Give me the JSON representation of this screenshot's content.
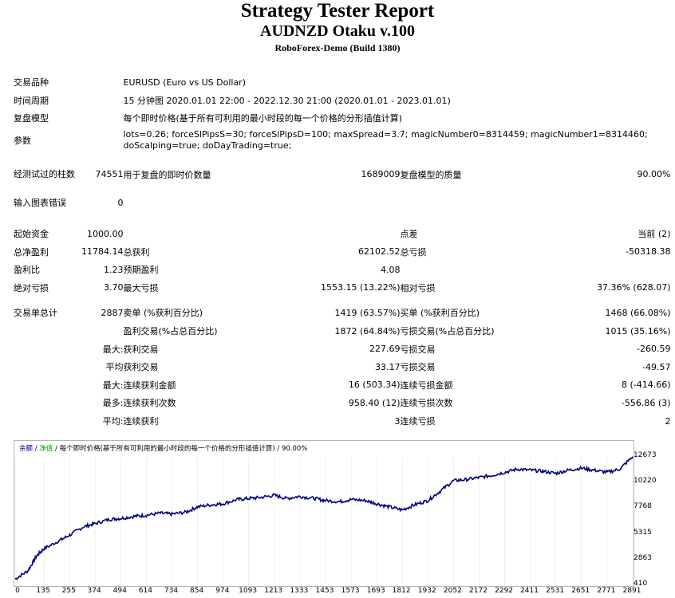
{
  "report": {
    "title": "Strategy Tester Report",
    "ea_name": "AUDNZD Otaku v.100",
    "server": "RoboForex-Demo (Build 1380)"
  },
  "settings": {
    "symbol_label": "交易品种",
    "symbol_value": "EURUSD (Euro vs US Dollar)",
    "period_label": "时间周期",
    "period_value": "15 分钟图 2020.01.01 22:00 - 2022.12.30 21:00 (2020.01.01 - 2023.01.01)",
    "model_label": "复盘模型",
    "model_value": "每个即时价格(基于所有可利用的最小时段的每一个价格的分形插值计算)",
    "params_label": "参数",
    "params_value": "lots=0.26; forceSlPipsS=30; forceSlPipsD=100; maxSpread=3.7; magicNumber0=8314459; magicNumber1=8314460; doScalping=true; doDayTrading=true;"
  },
  "test": {
    "bars_label": "经测试过的柱数",
    "bars_value": "74551",
    "ticks_label": "用于复盘的即时价数量",
    "ticks_value": "1689009",
    "quality_label": "复盘模型的质量",
    "quality_value": "90.00%",
    "errors_label": "输入图表错误",
    "errors_value": "0"
  },
  "results": {
    "initial_deposit_label": "起始资金",
    "initial_deposit_value": "1000.00",
    "spread_label": "点差",
    "spread_value": "当前 (2)",
    "net_profit_label": "总净盈利",
    "net_profit_value": "11784.14",
    "gross_profit_label": "总获利",
    "gross_profit_value": "62102.52",
    "gross_loss_label": "总亏损",
    "gross_loss_value": "-50318.38",
    "profit_factor_label": "盈利比",
    "profit_factor_value": "1.23",
    "expected_payoff_label": "预期盈利",
    "expected_payoff_value": "4.08",
    "abs_drawdown_label": "绝对亏损",
    "abs_drawdown_value": "3.70",
    "max_drawdown_label": "最大亏损",
    "max_drawdown_value": "1553.15 (13.22%)",
    "rel_drawdown_label": "相对亏损",
    "rel_drawdown_value": "37.36% (628.07)",
    "total_trades_label": "交易单总计",
    "total_trades_value": "2887",
    "short_label": "卖单 (%获利百分比)",
    "short_value": "1419 (63.57%)",
    "long_label": "买单 (%获利百分比)",
    "long_value": "1468 (66.08%)",
    "profit_trades_label": "盈利交易(%占总百分比)",
    "profit_trades_value": "1872 (64.84%)",
    "loss_trades_label": "亏损交易(%占总百分比)",
    "loss_trades_value": "1015 (35.16%)",
    "largest_label": "最大:",
    "largest_profit_label": "获利交易",
    "largest_profit_value": "227.69",
    "largest_loss_label": "亏损交易",
    "largest_loss_value": "-260.59",
    "average_label": "平均",
    "average_profit_label": "获利交易",
    "average_profit_value": "33.17",
    "average_loss_label": "亏损交易",
    "average_loss_value": "-49.57",
    "max_consec_label": "最大:",
    "max_consec_wins_label": "连续获利金额",
    "max_consec_wins_value": "16 (503.34)",
    "max_consec_losses_label": "连续亏损金额",
    "max_consec_losses_value": "8 (-414.66)",
    "maximal_label": "最多:",
    "maximal_consec_profit_label": "连续获利次数",
    "maximal_consec_profit_value": "958.40 (12)",
    "maximal_consec_loss_label": "连续亏损次数",
    "maximal_consec_loss_value": "-556.86 (3)",
    "avg_consec_label": "平均:",
    "avg_consec_wins_label": "连续获利",
    "avg_consec_wins_value": "3",
    "avg_consec_losses_label": "连续亏损",
    "avg_consec_losses_value": "2"
  },
  "chart_data": {
    "type": "line",
    "legend": {
      "balance": "余额",
      "sep1": " / ",
      "equity": "净值",
      "rest": " / 每个即时价格(基于所有可利用的最小时段的每一个价格的分形插值计算) / 90.00%"
    },
    "y_ticks": [
      "12673",
      "10220",
      "7768",
      "5315",
      "2863",
      "410"
    ],
    "x_ticks": [
      "0",
      "135",
      "255",
      "374",
      "494",
      "614",
      "734",
      "854",
      "974",
      "1093",
      "1213",
      "1333",
      "1453",
      "1573",
      "1693",
      "1812",
      "1932",
      "2052",
      "2172",
      "2292",
      "2411",
      "2531",
      "2651",
      "2771",
      "2891"
    ],
    "ylim": [
      410,
      12673
    ],
    "xlim": [
      0,
      2891
    ],
    "line_color": "#000080",
    "series": [
      {
        "x": [
          0,
          60,
          100,
          135,
          200,
          255,
          320,
          374,
          440,
          494,
          560,
          614,
          680,
          734,
          800,
          854,
          920,
          974,
          1040,
          1093,
          1150,
          1213,
          1270,
          1333,
          1400,
          1453,
          1520,
          1573,
          1640,
          1693,
          1750,
          1812,
          1870,
          1932,
          1990,
          2052,
          2110,
          2172,
          2230,
          2292,
          2350,
          2411,
          2470,
          2531,
          2590,
          2651,
          2710,
          2771,
          2830,
          2891
        ],
        "y": [
          1000,
          1800,
          3200,
          3900,
          4600,
          5200,
          6000,
          6300,
          6700,
          6800,
          7000,
          7100,
          7300,
          7200,
          7400,
          7900,
          8100,
          8200,
          8600,
          8700,
          8800,
          9000,
          8700,
          8900,
          8700,
          8500,
          8400,
          8600,
          8500,
          8200,
          7900,
          7600,
          8100,
          8500,
          9400,
          10400,
          10500,
          10700,
          10900,
          11200,
          11500,
          11400,
          11300,
          11100,
          11400,
          11600,
          11400,
          11200,
          11500,
          12700
        ]
      }
    ]
  }
}
